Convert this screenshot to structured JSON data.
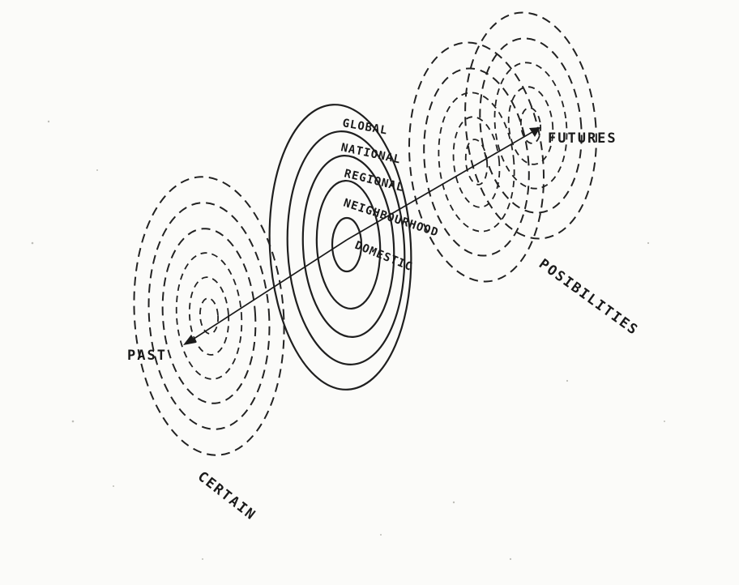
{
  "center": {
    "levels": [
      "GLOBAL",
      "NATIONAL",
      "REGIONAL",
      "NEIGHBOURHOOD",
      "DOMESTIC"
    ]
  },
  "past": {
    "label": "PAST",
    "caption": "CERTAIN"
  },
  "futures": {
    "label": "FUTURES",
    "caption": "POSIBILITIES"
  },
  "colors": {
    "ink": "#1f1f1f",
    "paper": "#fbfbf9"
  }
}
